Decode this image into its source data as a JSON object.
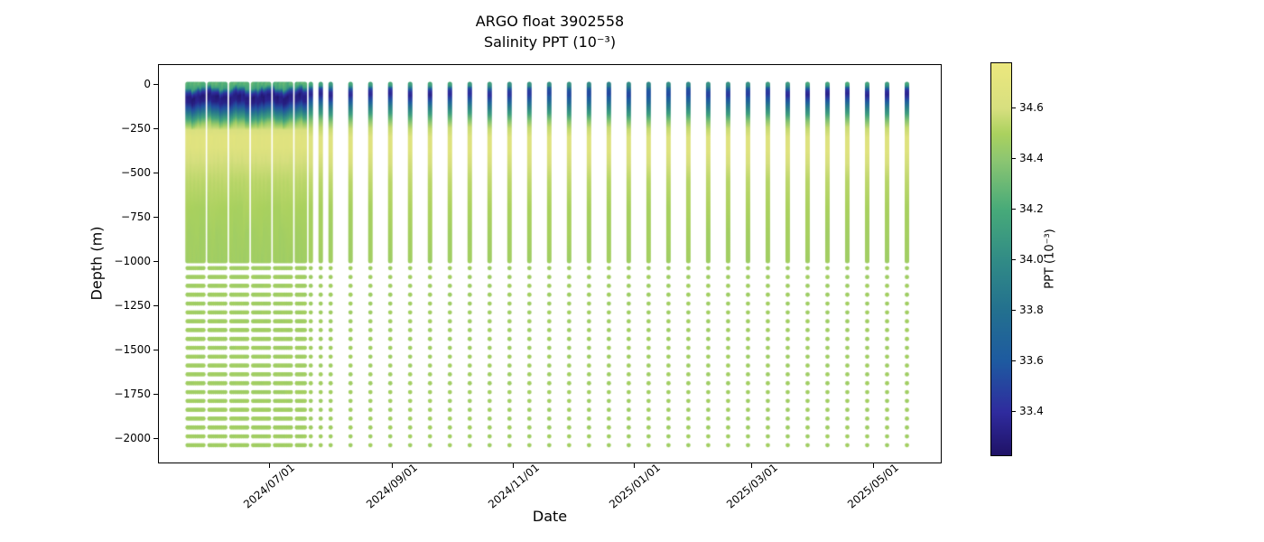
{
  "chart_data": {
    "type": "scatter",
    "title": "ARGO float 3902558",
    "subtitle": "Salinity PPT (10⁻³)",
    "xlabel": "Date",
    "ylabel": "Depth (m)",
    "grid": false,
    "ylim": [
      -2140,
      105
    ],
    "xlim_dates": [
      "2024-05-06",
      "2025-06-04"
    ],
    "y_ticks": [
      {
        "value": 0,
        "label": "0"
      },
      {
        "value": -250,
        "label": "−250"
      },
      {
        "value": -500,
        "label": "−500"
      },
      {
        "value": -750,
        "label": "−750"
      },
      {
        "value": -1000,
        "label": "−1000"
      },
      {
        "value": -1250,
        "label": "−1250"
      },
      {
        "value": -1500,
        "label": "−1500"
      },
      {
        "value": -1750,
        "label": "−1750"
      },
      {
        "value": -2000,
        "label": "−2000"
      }
    ],
    "x_ticks": [
      {
        "date": "2024-07-01",
        "label": "2024/07/01"
      },
      {
        "date": "2024-09-01",
        "label": "2024/09/01"
      },
      {
        "date": "2024-11-01",
        "label": "2024/11/01"
      },
      {
        "date": "2025-01-01",
        "label": "2025/01/01"
      },
      {
        "date": "2025-03-01",
        "label": "2025/03/01"
      },
      {
        "date": "2025-05-01",
        "label": "2025/05/01"
      }
    ],
    "colorbar": {
      "label": "PPT (10⁻³)",
      "vmin": 33.23,
      "vmax": 34.78,
      "tick_values": [
        33.4,
        33.6,
        33.8,
        34.0,
        34.2,
        34.4,
        34.6
      ],
      "tick_labels": [
        "33.4",
        "33.6",
        "33.8",
        "34.0",
        "34.2",
        "34.4",
        "34.6"
      ],
      "colormap": "haline",
      "stops": [
        [
          33.23,
          "#1f1266"
        ],
        [
          33.4,
          "#2f2b9e"
        ],
        [
          33.6,
          "#1e5aa0"
        ],
        [
          33.8,
          "#23708f"
        ],
        [
          34.0,
          "#318b86"
        ],
        [
          34.2,
          "#47aa79"
        ],
        [
          34.4,
          "#8dc671"
        ],
        [
          34.5,
          "#aad15e"
        ],
        [
          34.6,
          "#d7df7f"
        ],
        [
          34.78,
          "#ece87e"
        ]
      ]
    },
    "sampling": {
      "profile_dates_daily": [
        "2024-05-21",
        "2024-05-22",
        "2024-05-23",
        "2024-05-24",
        "2024-05-25",
        "2024-05-26",
        "2024-05-27",
        "2024-05-28",
        "2024-05-29",
        "2024-06-01",
        "2024-06-02",
        "2024-06-03",
        "2024-06-04",
        "2024-06-05",
        "2024-06-06",
        "2024-06-07",
        "2024-06-08",
        "2024-06-09",
        "2024-06-12",
        "2024-06-13",
        "2024-06-14",
        "2024-06-15",
        "2024-06-16",
        "2024-06-17",
        "2024-06-18",
        "2024-06-19",
        "2024-06-20",
        "2024-06-23",
        "2024-06-24",
        "2024-06-25",
        "2024-06-26",
        "2024-06-27",
        "2024-06-28",
        "2024-06-29",
        "2024-06-30",
        "2024-07-01",
        "2024-07-04",
        "2024-07-05",
        "2024-07-06",
        "2024-07-07",
        "2024-07-08",
        "2024-07-09",
        "2024-07-10",
        "2024-07-11",
        "2024-07-12",
        "2024-07-15",
        "2024-07-16",
        "2024-07-17",
        "2024-07-18",
        "2024-07-19"
      ],
      "profile_dates_5day": [
        "2024-07-22",
        "2024-07-27",
        "2024-08-01"
      ],
      "profile_dates_10day": [
        "2024-08-11",
        "2024-08-21",
        "2024-08-31",
        "2024-09-10",
        "2024-09-20",
        "2024-09-30",
        "2024-10-10",
        "2024-10-20",
        "2024-10-30",
        "2024-11-09",
        "2024-11-19",
        "2024-11-29",
        "2024-12-09",
        "2024-12-19",
        "2024-12-29",
        "2025-01-08",
        "2025-01-18",
        "2025-01-28",
        "2025-02-07",
        "2025-02-17",
        "2025-02-27",
        "2025-03-09",
        "2025-03-19",
        "2025-03-29",
        "2025-04-08",
        "2025-04-18",
        "2025-04-28",
        "2025-05-08",
        "2025-05-18"
      ],
      "upper_profile_extent_m": [
        0,
        -1000
      ],
      "deep_points": {
        "from_m": -1040,
        "to_m": -2040,
        "step_m": 50,
        "salinity": 34.47
      }
    },
    "salinity_profile_early": [
      [
        0,
        34.25
      ],
      [
        -20,
        34.15
      ],
      [
        -35,
        33.75
      ],
      [
        -50,
        33.42
      ],
      [
        -70,
        33.3
      ],
      [
        -100,
        33.33
      ],
      [
        -130,
        33.55
      ],
      [
        -160,
        33.85
      ],
      [
        -195,
        34.15
      ],
      [
        -230,
        34.45
      ],
      [
        -260,
        34.62
      ],
      [
        -300,
        34.68
      ],
      [
        -360,
        34.67
      ],
      [
        -430,
        34.6
      ],
      [
        -550,
        34.54
      ],
      [
        -700,
        34.5
      ],
      [
        -850,
        34.48
      ],
      [
        -1000,
        34.47
      ]
    ],
    "salinity_profile_late": [
      [
        0,
        34.16
      ],
      [
        -12,
        34.02
      ],
      [
        -25,
        33.65
      ],
      [
        -40,
        33.42
      ],
      [
        -60,
        33.36
      ],
      [
        -80,
        33.48
      ],
      [
        -100,
        33.62
      ],
      [
        -130,
        33.88
      ],
      [
        -170,
        34.12
      ],
      [
        -210,
        34.38
      ],
      [
        -250,
        34.56
      ],
      [
        -300,
        34.66
      ],
      [
        -380,
        34.67
      ],
      [
        -450,
        34.6
      ],
      [
        -550,
        34.54
      ],
      [
        -700,
        34.5
      ],
      [
        -850,
        34.48
      ],
      [
        -1000,
        34.47
      ]
    ]
  }
}
